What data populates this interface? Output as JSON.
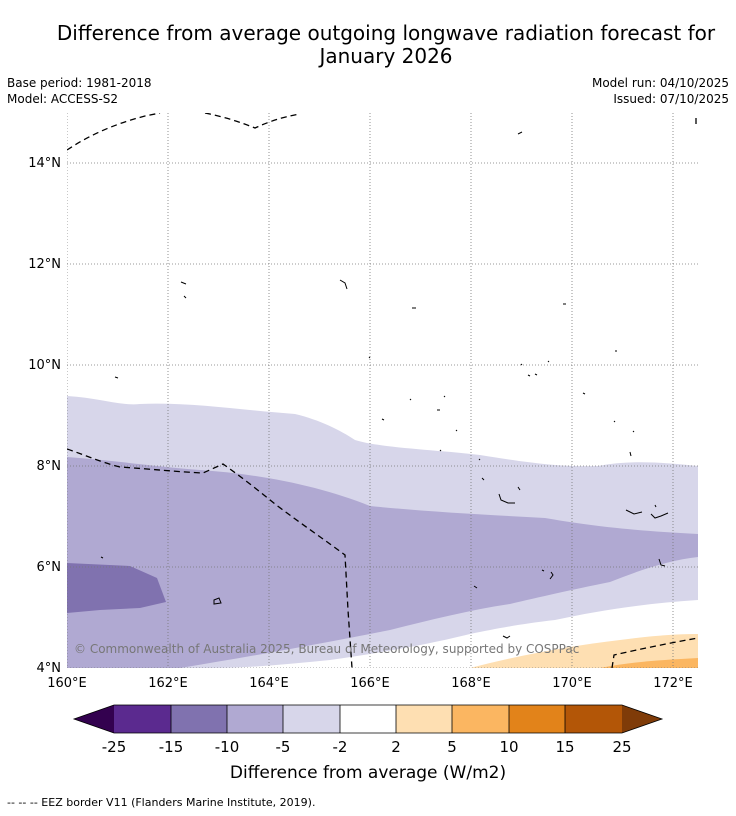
{
  "title_line1": "Difference from average outgoing longwave radiation forecast for",
  "title_line2": "January 2026",
  "meta_left": [
    "Base period: 1981-2018",
    "Model: ACCESS-S2"
  ],
  "meta_right": [
    "Model run: 04/10/2025",
    "Issued: 07/10/2025"
  ],
  "map": {
    "lon_range": [
      160,
      172.5
    ],
    "lat_range": [
      4,
      15
    ],
    "lon_ticks": [
      160,
      162,
      164,
      166,
      168,
      170,
      172
    ],
    "lat_ticks": [
      4,
      6,
      8,
      10,
      12,
      14
    ],
    "lon_labels": [
      "160°E",
      "162°E",
      "164°E",
      "166°E",
      "168°E",
      "170°E",
      "172°E"
    ],
    "lat_labels": [
      "4°N",
      "6°N",
      "8°N",
      "10°N",
      "12°N",
      "14°N"
    ],
    "copyright": "© Commonwealth of Australia 2025, Bureau of Meteorology, supported by COSPPac"
  },
  "colorbar": {
    "tick_labels": [
      "-25",
      "-15",
      "-10",
      "-5",
      "-2",
      "2",
      "5",
      "10",
      "15",
      "25"
    ],
    "colors": [
      "#5b2a8f",
      "#8072af",
      "#b0a9d2",
      "#d7d6ea",
      "#ffffff",
      "#fedfb2",
      "#fbb661",
      "#e2831a",
      "#b35607"
    ],
    "under_color": "#33014f",
    "over_color": "#7f3b08",
    "label": "Difference from average (W/m2)"
  },
  "legend": {
    "eez": "--  --  -- EEZ border V11 (Flanders Marine Institute, 2019)."
  }
}
